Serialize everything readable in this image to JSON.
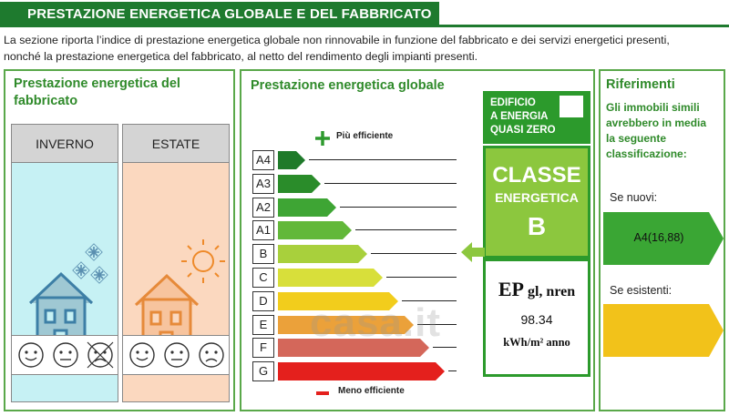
{
  "header": {
    "title": "PRESTAZIONE ENERGETICA GLOBALE  E DEL FABBRICATO"
  },
  "intro": {
    "line1": "La sezione riporta l’indice di prestazione energetica globale non rinnovabile in funzione del fabbricato e dei servizi energetici presenti,",
    "line2": "nonché la prestazione energetica del fabbricato, al netto del rendimento degli impianti presenti."
  },
  "building_panel": {
    "title_line1": "Prestazione energetica del",
    "title_line2": "fabbricato",
    "winter_label": "INVERNO",
    "summer_label": "ESTATE"
  },
  "global_panel": {
    "title": "Prestazione energetica globale",
    "more_efficient": "Più efficiente",
    "less_efficient": "Meno efficiente",
    "classes": [
      {
        "label": "A4",
        "color": "#1f7a2a"
      },
      {
        "label": "A3",
        "color": "#2a8c2a"
      },
      {
        "label": "A2",
        "color": "#3ea534"
      },
      {
        "label": "A1",
        "color": "#62b83a"
      },
      {
        "label": "B",
        "color": "#a8d03c"
      },
      {
        "label": "C",
        "color": "#d8df3a"
      },
      {
        "label": "D",
        "color": "#f2cd1c"
      },
      {
        "label": "E",
        "color": "#eba13a"
      },
      {
        "label": "F",
        "color": "#d4675a"
      },
      {
        "label": "G",
        "color": "#e4201d"
      }
    ],
    "nzeb": {
      "line1": "EDIFICIO",
      "line2": "A ENERGIA",
      "line3": "QUASI ZERO"
    },
    "classe_label": "CLASSE",
    "energetica_label": "ENERGETICA",
    "class_value": "B",
    "ep_label": "EP",
    "ep_sub": "gl, nren",
    "ep_value": "98.34",
    "ep_unit": "kWh/m² anno",
    "watermark": "casa.it"
  },
  "references_panel": {
    "title": "Riferimenti",
    "text_line1": "Gli immobili simili",
    "text_line2": "avrebbero in media",
    "text_line3": "la seguente",
    "text_line4": "classificazione:",
    "new_label": "Se nuovi:",
    "new_value": "A4(16,88)",
    "new_color": "#3aa634",
    "existing_label": "Se esistenti:",
    "existing_value": "",
    "existing_color": "#f2c21a"
  },
  "colors": {
    "brand_green": "#1e7a2e",
    "panel_border": "#5aa84a",
    "title_green": "#2f8a2a",
    "winter_bg": "#c6f1f4",
    "summer_bg": "#fbd8bf"
  }
}
